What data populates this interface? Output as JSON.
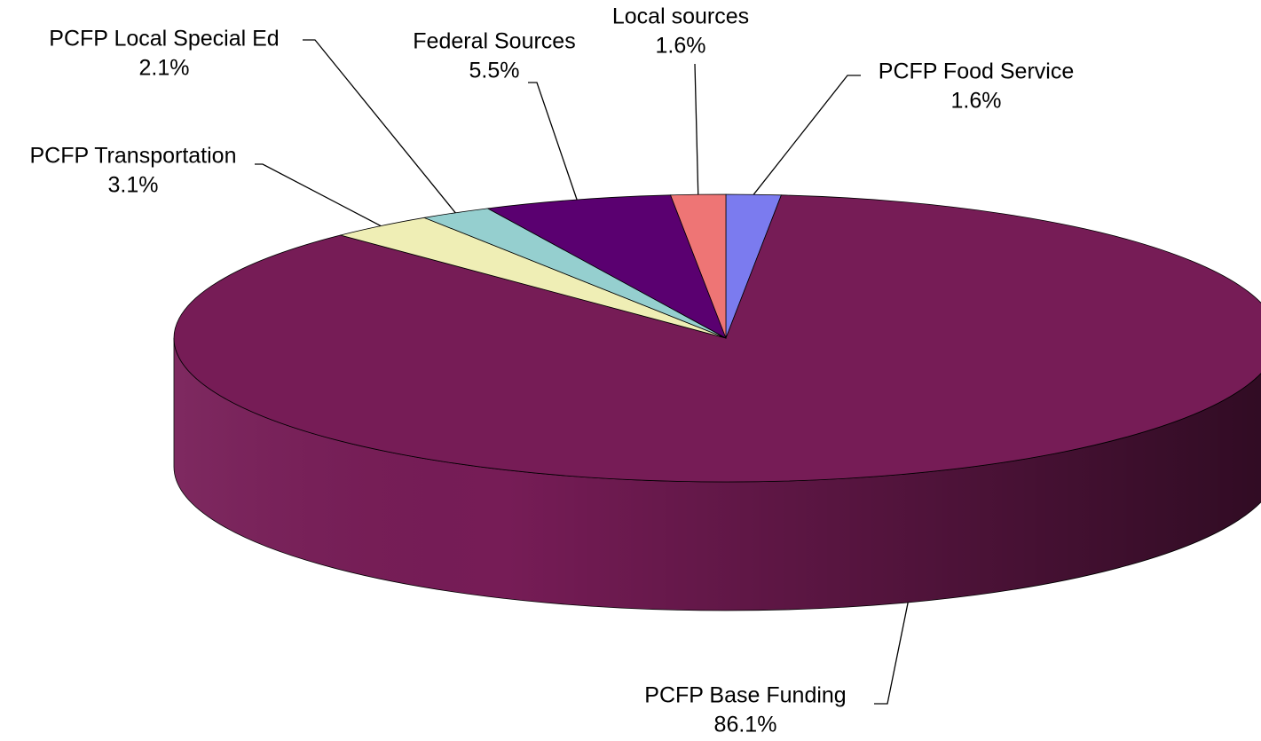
{
  "chart_data": {
    "type": "pie",
    "categories": [
      "PCFP Food Service",
      "PCFP Base Funding",
      "PCFP Transportation",
      "PCFP Local Special Ed",
      "Federal Sources",
      "Local sources"
    ],
    "values": [
      1.6,
      86.1,
      3.1,
      2.1,
      5.5,
      1.6
    ],
    "value_labels": [
      "1.6%",
      "86.1%",
      "3.1%",
      "2.1%",
      "5.5%",
      "1.6%"
    ],
    "colors": [
      "#7b7bef",
      "#761c56",
      "#efeeb5",
      "#95cfcf",
      "#5a0070",
      "#ee7575"
    ]
  }
}
